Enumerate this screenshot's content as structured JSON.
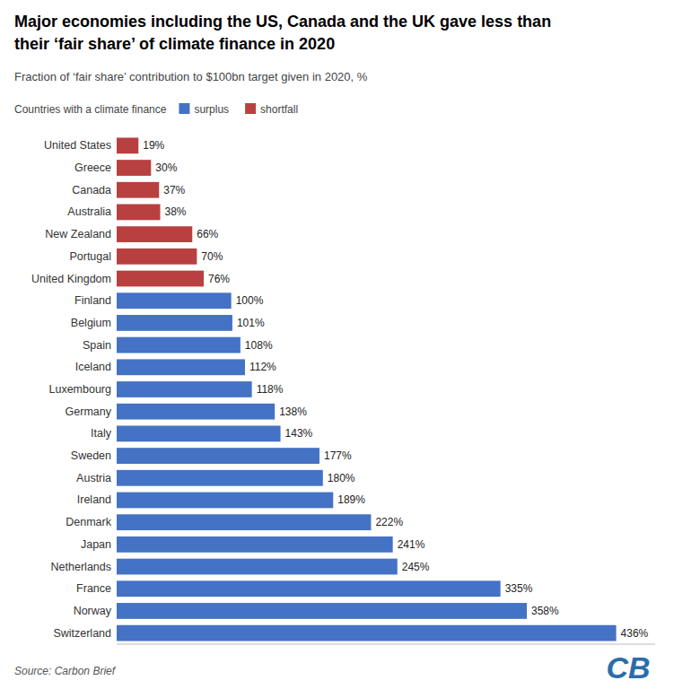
{
  "chart_data": {
    "type": "bar",
    "orientation": "horizontal",
    "title": "Major economies including the US, Canada and the UK gave less than\ntheir ‘fair share’ of climate finance in 2020",
    "subtitle": "Fraction of ‘fair share’ contribution to $100bn target given in 2020, %",
    "source": "Source: Carbon Brief",
    "legend_title": "Countries with a climate finance",
    "legend_items": [
      {
        "name": "surplus",
        "color": "#4472C4"
      },
      {
        "name": "shortfall",
        "color": "#B94040"
      }
    ],
    "categories": [
      "United States",
      "Greece",
      "Canada",
      "Australia",
      "New Zealand",
      "Portugal",
      "United Kingdom",
      "Finland",
      "Belgium",
      "Spain",
      "Iceland",
      "Luxembourg",
      "Germany",
      "Italy",
      "Sweden",
      "Austria",
      "Ireland",
      "Denmark",
      "Japan",
      "Netherlands",
      "France",
      "Norway",
      "Switzerland"
    ],
    "values": [
      19,
      30,
      37,
      38,
      66,
      70,
      76,
      100,
      101,
      108,
      112,
      118,
      138,
      143,
      177,
      180,
      189,
      222,
      241,
      245,
      335,
      358,
      436
    ],
    "value_labels": [
      "19%",
      "30%",
      "37%",
      "38%",
      "66%",
      "70%",
      "76%",
      "100%",
      "101%",
      "108%",
      "112%",
      "118%",
      "138%",
      "143%",
      "177%",
      "180%",
      "189%",
      "222%",
      "241%",
      "245%",
      "335%",
      "358%",
      "436%"
    ],
    "colors": [
      "#B94040",
      "#B94040",
      "#B94040",
      "#B94040",
      "#B94040",
      "#B94040",
      "#B94040",
      "#4472C4",
      "#4472C4",
      "#4472C4",
      "#4472C4",
      "#4472C4",
      "#4472C4",
      "#4472C4",
      "#4472C4",
      "#4472C4",
      "#4472C4",
      "#4472C4",
      "#4472C4",
      "#4472C4",
      "#4472C4",
      "#4472C4",
      "#4472C4"
    ],
    "data_labels": true,
    "xlim": [
      0,
      470
    ],
    "tick_labels": "y",
    "grid": false,
    "annotations": [
      {
        "text": "CB",
        "color": "#2A6EAA"
      }
    ]
  }
}
